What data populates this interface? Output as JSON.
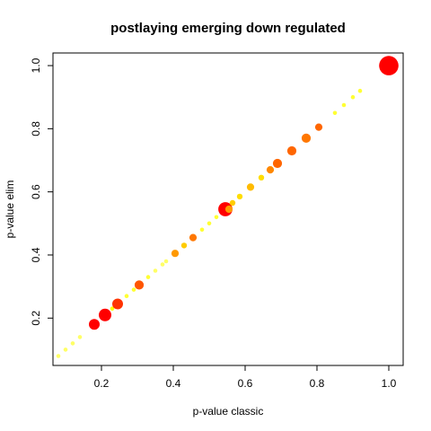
{
  "chart_data": {
    "type": "scatter",
    "title": "postlaying emerging down regulated",
    "xlabel": "p-value classic",
    "ylabel": "p-value elim",
    "xlim": [
      0.065,
      1.04
    ],
    "ylim": [
      0.05,
      1.04
    ],
    "xticks": [
      0.2,
      0.4,
      0.6,
      0.8,
      1.0
    ],
    "yticks": [
      0.2,
      0.4,
      0.6,
      0.8,
      1.0
    ],
    "xtick_labels": [
      "0.2",
      "0.4",
      "0.6",
      "0.8",
      "1.0"
    ],
    "ytick_labels": [
      "0.2",
      "0.4",
      "0.6",
      "0.8",
      "1.0"
    ],
    "grid": false,
    "points": [
      {
        "x": 0.08,
        "y": 0.08,
        "size": 1,
        "color": "#ffff66"
      },
      {
        "x": 0.1,
        "y": 0.1,
        "size": 1,
        "color": "#ffff66"
      },
      {
        "x": 0.12,
        "y": 0.12,
        "size": 1,
        "color": "#ffff66"
      },
      {
        "x": 0.14,
        "y": 0.14,
        "size": 1,
        "color": "#ffff66"
      },
      {
        "x": 0.18,
        "y": 0.18,
        "size": 5,
        "color": "#ff0000"
      },
      {
        "x": 0.21,
        "y": 0.21,
        "size": 6,
        "color": "#ff0000"
      },
      {
        "x": 0.23,
        "y": 0.23,
        "size": 1,
        "color": "#ffff00"
      },
      {
        "x": 0.245,
        "y": 0.245,
        "size": 5,
        "color": "#ff3300"
      },
      {
        "x": 0.27,
        "y": 0.27,
        "size": 1,
        "color": "#ffff33"
      },
      {
        "x": 0.29,
        "y": 0.29,
        "size": 1,
        "color": "#ffff33"
      },
      {
        "x": 0.305,
        "y": 0.305,
        "size": 4,
        "color": "#ff5500"
      },
      {
        "x": 0.33,
        "y": 0.33,
        "size": 1,
        "color": "#ffff33"
      },
      {
        "x": 0.35,
        "y": 0.35,
        "size": 1,
        "color": "#ffff66"
      },
      {
        "x": 0.37,
        "y": 0.37,
        "size": 1,
        "color": "#ffff66"
      },
      {
        "x": 0.38,
        "y": 0.38,
        "size": 1,
        "color": "#ffff66"
      },
      {
        "x": 0.405,
        "y": 0.405,
        "size": 3,
        "color": "#ff9900"
      },
      {
        "x": 0.43,
        "y": 0.43,
        "size": 2,
        "color": "#ffcc00"
      },
      {
        "x": 0.455,
        "y": 0.455,
        "size": 3,
        "color": "#ff7700"
      },
      {
        "x": 0.48,
        "y": 0.48,
        "size": 1,
        "color": "#ffff33"
      },
      {
        "x": 0.5,
        "y": 0.5,
        "size": 1,
        "color": "#ffff33"
      },
      {
        "x": 0.52,
        "y": 0.52,
        "size": 1,
        "color": "#ffff33"
      },
      {
        "x": 0.545,
        "y": 0.545,
        "size": 7,
        "color": "#ff0000"
      },
      {
        "x": 0.555,
        "y": 0.545,
        "size": 3,
        "color": "#ff9900"
      },
      {
        "x": 0.565,
        "y": 0.565,
        "size": 2,
        "color": "#ffcc00"
      },
      {
        "x": 0.585,
        "y": 0.585,
        "size": 2,
        "color": "#ffdd00"
      },
      {
        "x": 0.615,
        "y": 0.615,
        "size": 3,
        "color": "#ffbb00"
      },
      {
        "x": 0.645,
        "y": 0.645,
        "size": 2,
        "color": "#ffdd00"
      },
      {
        "x": 0.67,
        "y": 0.67,
        "size": 3,
        "color": "#ff8800"
      },
      {
        "x": 0.69,
        "y": 0.69,
        "size": 4,
        "color": "#ff6600"
      },
      {
        "x": 0.73,
        "y": 0.73,
        "size": 4,
        "color": "#ff6600"
      },
      {
        "x": 0.77,
        "y": 0.77,
        "size": 4,
        "color": "#ff7700"
      },
      {
        "x": 0.805,
        "y": 0.805,
        "size": 3,
        "color": "#ff6600"
      },
      {
        "x": 0.85,
        "y": 0.85,
        "size": 1,
        "color": "#ffff33"
      },
      {
        "x": 0.875,
        "y": 0.875,
        "size": 1,
        "color": "#ffff33"
      },
      {
        "x": 0.9,
        "y": 0.9,
        "size": 1,
        "color": "#ffff33"
      },
      {
        "x": 0.92,
        "y": 0.92,
        "size": 1,
        "color": "#ffff33"
      },
      {
        "x": 1.0,
        "y": 1.0,
        "size": 10,
        "color": "#ff0000"
      }
    ]
  }
}
